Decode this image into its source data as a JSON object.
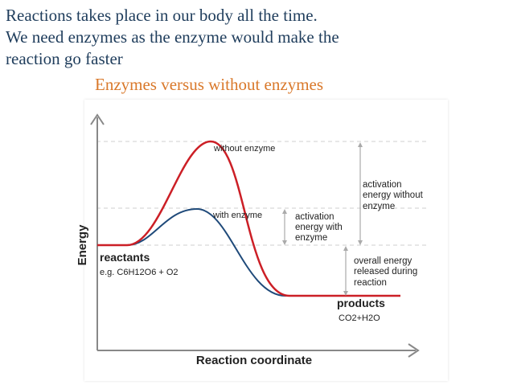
{
  "intro_lines": [
    "Reactions takes place in our body all the time.",
    "We need enzymes as the enzyme would make the",
    "reaction go faster"
  ],
  "subtitle": "Enzymes versus without enzymes",
  "diagram": {
    "y_axis_label": "Energy",
    "x_axis_label": "Reaction coordinate",
    "curve_without_label": "without enzyme",
    "curve_with_label": "with enzyme",
    "reactants_title": "reactants",
    "reactants_example": "e.g. C6H12O6 + O2",
    "products_title": "products",
    "products_example": "CO2+H2O",
    "activation_without": [
      "activation",
      "energy without",
      "enzyme"
    ],
    "activation_with": [
      "activation",
      "energy with",
      "enzyme"
    ],
    "overall_energy": [
      "overall energy",
      "released during",
      "reaction"
    ],
    "colors": {
      "without_enzyme": "#cc1f26",
      "with_enzyme": "#1f4a7a",
      "guides": "#aaaaaa"
    }
  }
}
